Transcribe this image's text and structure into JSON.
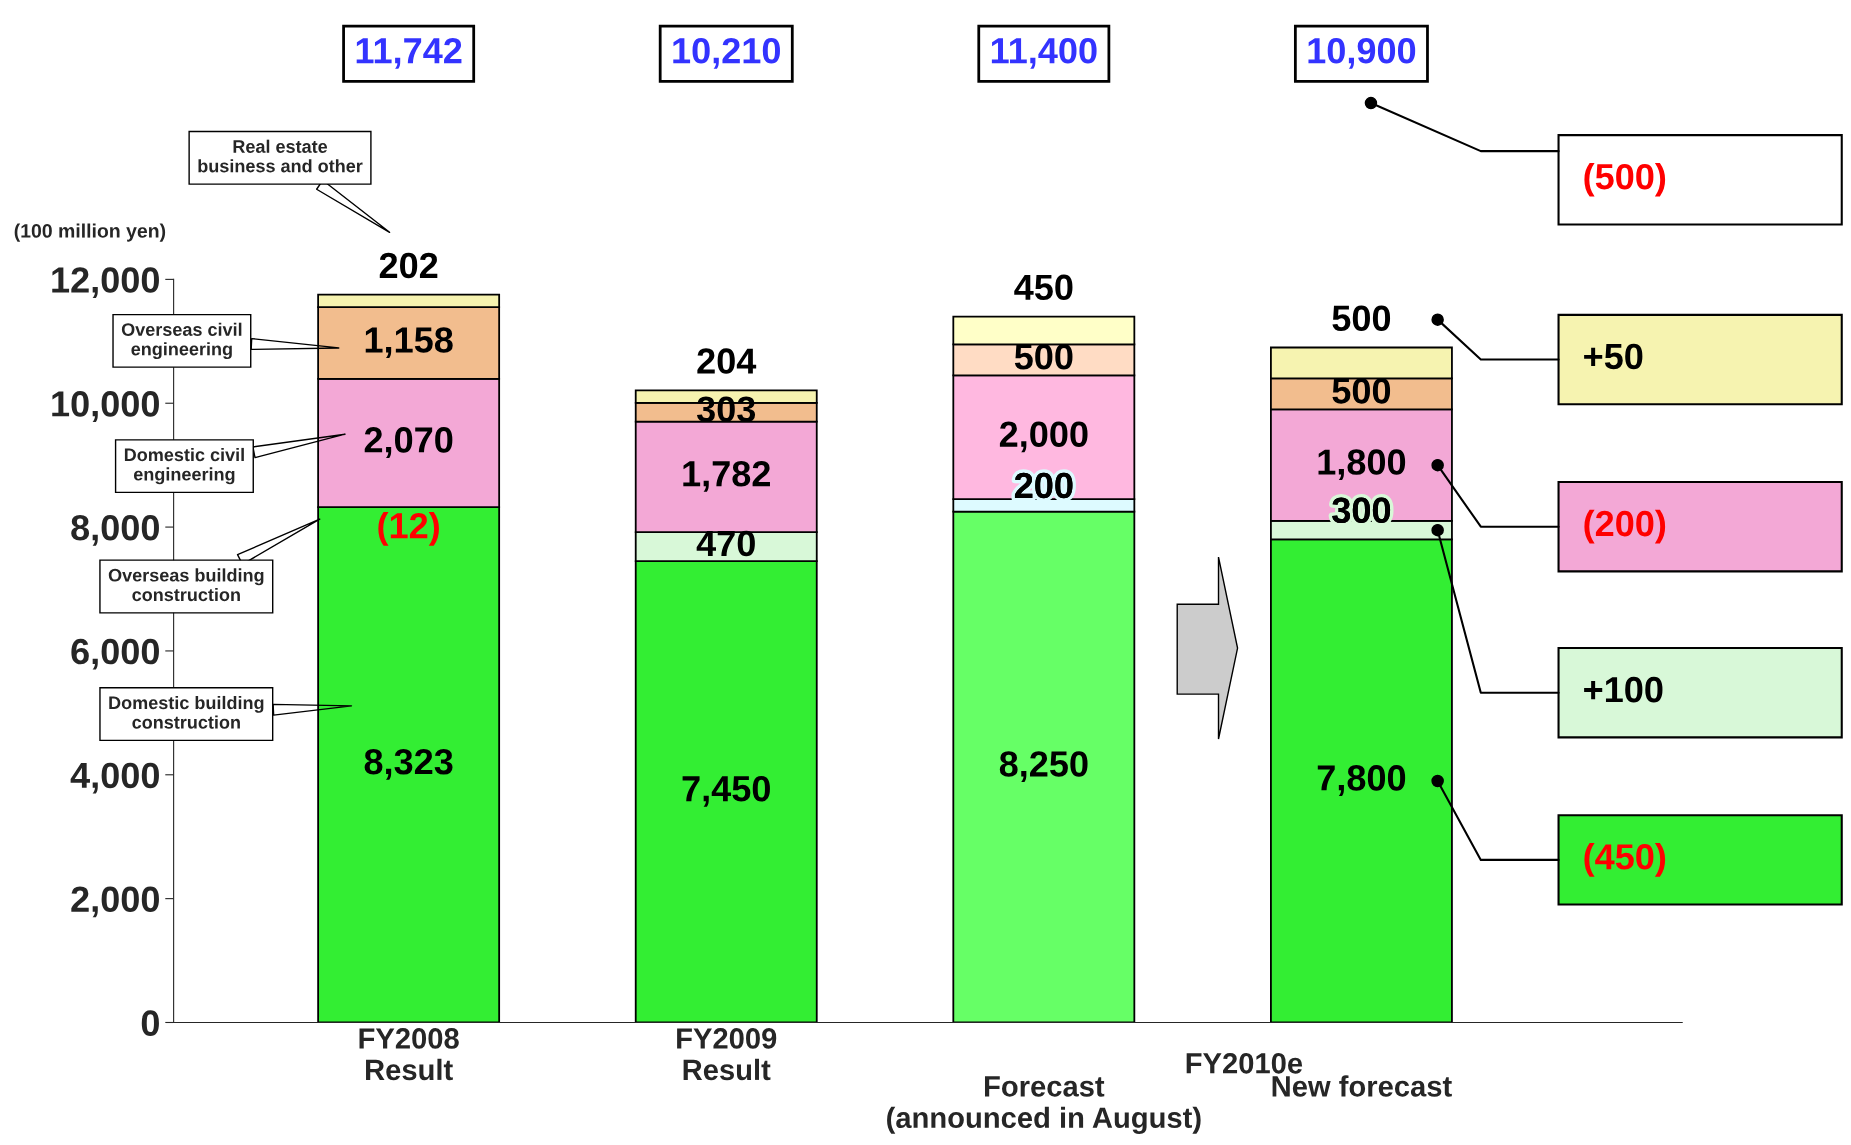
{
  "chart_data": {
    "type": "bar",
    "stacked": true,
    "categories": [
      "FY2008\nResult",
      "FY2009\nResult",
      "Forecast\n(announced in August)",
      "New forecast"
    ],
    "ylabel": "(100 million yen)",
    "ylim": [
      0,
      12000
    ],
    "yticks": [
      {
        "value": 0,
        "label": "0"
      },
      {
        "value": 2000,
        "label": "2,000"
      },
      {
        "value": 4000,
        "label": "4,000"
      },
      {
        "value": 6000,
        "label": "6,000"
      },
      {
        "value": 8000,
        "label": "8,000"
      },
      {
        "value": 10000,
        "label": "10,000"
      },
      {
        "value": 12000,
        "label": "12,000"
      }
    ],
    "grid": false,
    "legend": "left",
    "series": [
      {
        "name": "Domestic building\nconstruction",
        "colors": [
          "#33ee33",
          "#33ee33",
          "#66ff66",
          "#33ee33"
        ],
        "values": [
          8323,
          7450,
          8250,
          7800
        ],
        "value_labels": [
          "8,323",
          "7,450",
          "8,250",
          "7,800"
        ]
      },
      {
        "name": "Overseas building\nconstruction",
        "colors": [
          "#d8f8d8",
          "#d8f8d8",
          "#ddfaff",
          "#d8f8d8"
        ],
        "values": [
          null,
          470,
          200,
          300
        ],
        "value_labels": [
          null,
          "470",
          "200",
          "300"
        ]
      },
      {
        "name": "Domestic civil\nengineering",
        "colors": [
          "#f3a8d6",
          "#f3a8d6",
          "#ffb8e0",
          "#f3a8d6"
        ],
        "values": [
          2070,
          1782,
          2000,
          1800
        ],
        "value_labels": [
          "2,070",
          "1,782",
          "2,000",
          "1,800"
        ]
      },
      {
        "name": "Overseas civil\nengineering",
        "colors": [
          "#f2bd8e",
          "#f2bd8e",
          "#ffdcc4",
          "#f2bd8e"
        ],
        "values": [
          1158,
          303,
          500,
          500
        ],
        "value_labels": [
          "1,158",
          "303",
          "500",
          "500"
        ]
      },
      {
        "name": "Real estate\nbusiness and other",
        "colors": [
          "#f6f3b0",
          "#f6f3b0",
          "#ffffc8",
          "#f6f3b0"
        ],
        "values": [
          202,
          204,
          450,
          500
        ],
        "value_labels": [
          "202",
          "204",
          "450",
          "500"
        ]
      }
    ],
    "annotations": [
      "11,742",
      "10,210",
      "11,400",
      "10,900",
      "FY2010e",
      "(500)",
      "+50",
      "(200)",
      "+100",
      "(450)",
      {
        "text": "(12)",
        "x": "FY2008\nResult",
        "y": 8323
      }
    ]
  }
}
